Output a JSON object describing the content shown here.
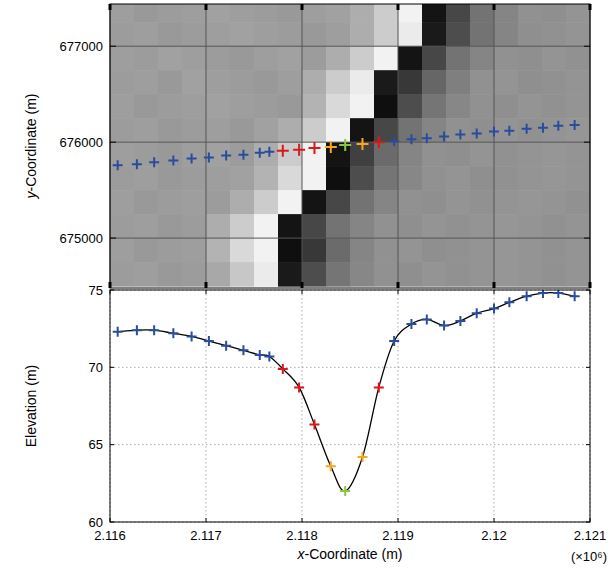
{
  "chart_data": [
    {
      "type": "heatmap",
      "ylabel": "y-Coordinate (m)",
      "xlim": [
        2116000,
        2121000
      ],
      "ylim": [
        674480,
        677440
      ],
      "xticks": [
        2116000,
        2117000,
        2118000,
        2119000,
        2120000,
        2121000
      ],
      "yticks": [
        675000,
        676000,
        677000
      ],
      "grid": true,
      "tick_labels": "y",
      "cells_x": [
        2116000,
        2121000
      ],
      "cells_y": [
        674500,
        677500
      ],
      "cells": [
        [
          62,
          60,
          61,
          62,
          63,
          62,
          61,
          60,
          62,
          63,
          68,
          80,
          95,
          8,
          28,
          45,
          52,
          57,
          56,
          58
        ],
        [
          61,
          62,
          60,
          61,
          62,
          63,
          62,
          61,
          60,
          62,
          68,
          80,
          92,
          10,
          30,
          45,
          52,
          56,
          57,
          58
        ],
        [
          62,
          61,
          63,
          62,
          61,
          60,
          62,
          63,
          61,
          68,
          80,
          95,
          8,
          28,
          45,
          52,
          57,
          56,
          58,
          57
        ],
        [
          61,
          62,
          60,
          63,
          62,
          61,
          60,
          62,
          68,
          80,
          92,
          10,
          22,
          40,
          50,
          57,
          58,
          56,
          57,
          58
        ],
        [
          62,
          60,
          61,
          62,
          63,
          62,
          61,
          60,
          70,
          85,
          95,
          6,
          30,
          46,
          53,
          57,
          56,
          58,
          57,
          58
        ],
        [
          61,
          62,
          60,
          61,
          62,
          60,
          63,
          68,
          80,
          95,
          8,
          28,
          45,
          52,
          57,
          56,
          58,
          57,
          58,
          59
        ],
        [
          62,
          61,
          60,
          62,
          63,
          61,
          68,
          80,
          95,
          8,
          25,
          42,
          52,
          57,
          56,
          58,
          57,
          58,
          59,
          58
        ],
        [
          61,
          62,
          60,
          61,
          62,
          63,
          70,
          85,
          95,
          6,
          30,
          46,
          53,
          57,
          58,
          56,
          57,
          58,
          59,
          58
        ],
        [
          62,
          60,
          61,
          62,
          61,
          68,
          80,
          95,
          8,
          28,
          45,
          52,
          57,
          56,
          58,
          57,
          58,
          59,
          58,
          57
        ],
        [
          61,
          62,
          60,
          61,
          68,
          80,
          95,
          8,
          28,
          45,
          52,
          57,
          56,
          58,
          57,
          58,
          59,
          58,
          57,
          58
        ],
        [
          62,
          60,
          61,
          62,
          70,
          85,
          95,
          6,
          22,
          42,
          52,
          57,
          58,
          56,
          57,
          58,
          59,
          58,
          57,
          58
        ],
        [
          61,
          62,
          60,
          61,
          66,
          78,
          92,
          10,
          30,
          46,
          53,
          57,
          56,
          58,
          57,
          58,
          59,
          58,
          57,
          58
        ]
      ],
      "series": [
        {
          "type": "scatter",
          "marker": "plus",
          "x": [
            2116080,
            2116280,
            2116460,
            2116660,
            2116850,
            2117030,
            2117210,
            2117390,
            2117560,
            2117660,
            2117800,
            2117970,
            2118130,
            2118300,
            2118450,
            2118630,
            2118800,
            2118960,
            2119140,
            2119300,
            2119480,
            2119650,
            2119820,
            2120000,
            2120160,
            2120340,
            2120510,
            2120670,
            2120840
          ],
          "values": [
            675760,
            675770,
            675790,
            675810,
            675830,
            675840,
            675860,
            675870,
            675890,
            675900,
            675910,
            675920,
            675940,
            675950,
            675970,
            675980,
            676000,
            676010,
            676030,
            676040,
            676060,
            676080,
            676090,
            676110,
            676120,
            676140,
            676150,
            676170,
            676180
          ],
          "colors": [
            "#2b4c9b",
            "#2b4c9b",
            "#2b4c9b",
            "#2b4c9b",
            "#2b4c9b",
            "#2b4c9b",
            "#2b4c9b",
            "#2b4c9b",
            "#2b4c9b",
            "#2b4c9b",
            "#d7191c",
            "#d7191c",
            "#d7191c",
            "#f5a623",
            "#8cc63f",
            "#f5a623",
            "#d7191c",
            "#2b4c9b",
            "#2b4c9b",
            "#2b4c9b",
            "#2b4c9b",
            "#2b4c9b",
            "#2b4c9b",
            "#2b4c9b",
            "#2b4c9b",
            "#2b4c9b",
            "#2b4c9b",
            "#2b4c9b",
            "#2b4c9b"
          ]
        }
      ]
    },
    {
      "type": "line",
      "xlabel": "x-Coordinate (m)",
      "ylabel": "Elevation (m)",
      "annotation": "(×10⁶)",
      "xlim": [
        2116000,
        2121000
      ],
      "ylim": [
        60,
        75
      ],
      "xticks": [
        {
          "value": 2116000,
          "label": "2.116"
        },
        {
          "value": 2117000,
          "label": "2.117"
        },
        {
          "value": 2118000,
          "label": "2.118"
        },
        {
          "value": 2119000,
          "label": "2.119"
        },
        {
          "value": 2120000,
          "label": "2.12"
        },
        {
          "value": 2121000,
          "label": "2.121"
        }
      ],
      "yticks": [
        60,
        65,
        70,
        75
      ],
      "grid": true,
      "series": [
        {
          "type": "line",
          "marker": "plus",
          "line_style": "solid",
          "color": "#000000",
          "x": [
            2116080,
            2116280,
            2116460,
            2116660,
            2116850,
            2117030,
            2117210,
            2117390,
            2117560,
            2117660,
            2117800,
            2117970,
            2118130,
            2118300,
            2118450,
            2118630,
            2118800,
            2118960,
            2119140,
            2119300,
            2119480,
            2119650,
            2119820,
            2120000,
            2120160,
            2120340,
            2120510,
            2120670,
            2120840
          ],
          "values": [
            72.3,
            72.4,
            72.4,
            72.2,
            72.0,
            71.7,
            71.4,
            71.1,
            70.8,
            70.7,
            69.9,
            68.7,
            66.3,
            63.6,
            62.0,
            64.2,
            68.7,
            71.7,
            72.8,
            73.1,
            72.7,
            73.0,
            73.5,
            73.8,
            74.2,
            74.6,
            74.8,
            74.8,
            74.6
          ],
          "colors": [
            "#2b4c9b",
            "#2b4c9b",
            "#2b4c9b",
            "#2b4c9b",
            "#2b4c9b",
            "#2b4c9b",
            "#2b4c9b",
            "#2b4c9b",
            "#2b4c9b",
            "#2b4c9b",
            "#d7191c",
            "#d7191c",
            "#d7191c",
            "#f5a623",
            "#8cc63f",
            "#f5a623",
            "#d7191c",
            "#2b4c9b",
            "#2b4c9b",
            "#2b4c9b",
            "#2b4c9b",
            "#2b4c9b",
            "#2b4c9b",
            "#2b4c9b",
            "#2b4c9b",
            "#2b4c9b",
            "#2b4c9b",
            "#2b4c9b",
            "#2b4c9b"
          ]
        }
      ]
    }
  ]
}
